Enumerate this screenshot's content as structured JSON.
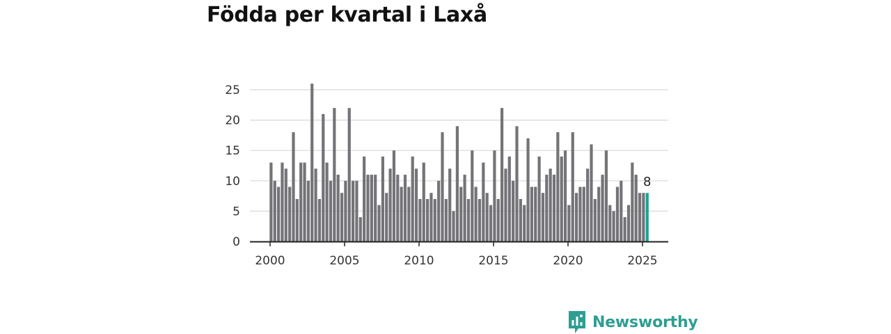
{
  "title": "Födda per kvartal i Laxå",
  "brand": {
    "name": "Newsworthy",
    "icon": "newsworthy-logo-icon",
    "color": "#2e9e92"
  },
  "colors": {
    "bar": "#747378",
    "highlight": "#1aa393",
    "grid": "#d8d8d8",
    "axis": "#222222"
  },
  "chart_data": {
    "type": "bar",
    "title": "Födda per kvartal i Laxå",
    "xlabel": "",
    "ylabel": "",
    "x_start": 2000,
    "step": 0.25,
    "xlim": [
      1999.6,
      2026.7
    ],
    "xticks": [
      2000,
      2005,
      2010,
      2015,
      2020,
      2025
    ],
    "ylim": [
      0,
      26
    ],
    "yticks": [
      0,
      5,
      10,
      15,
      20,
      25
    ],
    "grid": true,
    "values": [
      13,
      10,
      9,
      13,
      12,
      9,
      18,
      7,
      13,
      13,
      10,
      26,
      12,
      7,
      21,
      13,
      10,
      22,
      11,
      8,
      10,
      22,
      10,
      10,
      4,
      14,
      11,
      11,
      11,
      6,
      14,
      8,
      12,
      15,
      11,
      9,
      11,
      9,
      14,
      12,
      7,
      13,
      7,
      8,
      7,
      10,
      18,
      7,
      12,
      5,
      19,
      9,
      11,
      7,
      15,
      9,
      7,
      13,
      8,
      6,
      15,
      7,
      22,
      12,
      14,
      10,
      19,
      7,
      6,
      17,
      9,
      9,
      14,
      8,
      11,
      12,
      11,
      18,
      14,
      15,
      6,
      18,
      8,
      9,
      9,
      12,
      16,
      7,
      9,
      11,
      15,
      6,
      5,
      9,
      10,
      4,
      6,
      13,
      11,
      8,
      8,
      8
    ],
    "highlight_index": 101,
    "annotations": [
      {
        "index": 101,
        "text": "8"
      }
    ]
  }
}
